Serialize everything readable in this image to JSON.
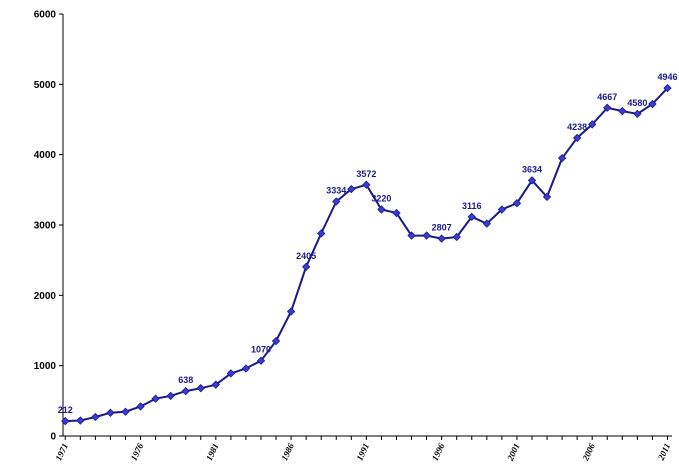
{
  "chart_data": {
    "type": "line",
    "title": "",
    "xlabel": "",
    "ylabel": "",
    "ylim": [
      0,
      6000
    ],
    "yticks": [
      0,
      1000,
      2000,
      3000,
      4000,
      5000,
      6000
    ],
    "xticks": [
      1971,
      1976,
      1981,
      1986,
      1991,
      1996,
      2001,
      2006,
      2011
    ],
    "grid": false,
    "legend": "none",
    "series": [
      {
        "color": "#1a1a8c",
        "marker_color": "#3b3bd6",
        "x": [
          1971,
          1972,
          1973,
          1974,
          1975,
          1976,
          1977,
          1978,
          1979,
          1980,
          1981,
          1982,
          1983,
          1984,
          1985,
          1986,
          1987,
          1988,
          1989,
          1990,
          1991,
          1992,
          1993,
          1994,
          1995,
          1996,
          1997,
          1998,
          1999,
          2000,
          2001,
          2002,
          2003,
          2004,
          2005,
          2006,
          2007,
          2008,
          2009,
          2010,
          2011
        ],
        "values": [
          212,
          220,
          270,
          330,
          345,
          420,
          530,
          570,
          638,
          680,
          730,
          890,
          960,
          1070,
          1350,
          1770,
          2405,
          2880,
          3334,
          3510,
          3572,
          3220,
          3170,
          2850,
          2850,
          2807,
          2830,
          3116,
          3020,
          3220,
          3310,
          3634,
          3400,
          3950,
          4238,
          4430,
          4667,
          4620,
          4580,
          4720,
          4946
        ]
      }
    ],
    "data_labels": [
      {
        "x": 1971,
        "text": "212"
      },
      {
        "x": 1979,
        "text": "638"
      },
      {
        "x": 1984,
        "text": "1070"
      },
      {
        "x": 1987,
        "text": "2405"
      },
      {
        "x": 1989,
        "text": "3334"
      },
      {
        "x": 1991,
        "text": "3572"
      },
      {
        "x": 1992,
        "text": "3220"
      },
      {
        "x": 1996,
        "text": "2807"
      },
      {
        "x": 1998,
        "text": "3116"
      },
      {
        "x": 2002,
        "text": "3634"
      },
      {
        "x": 2005,
        "text": "4238"
      },
      {
        "x": 2007,
        "text": "4667"
      },
      {
        "x": 2009,
        "text": "4580"
      },
      {
        "x": 2011,
        "text": "4946"
      }
    ]
  }
}
